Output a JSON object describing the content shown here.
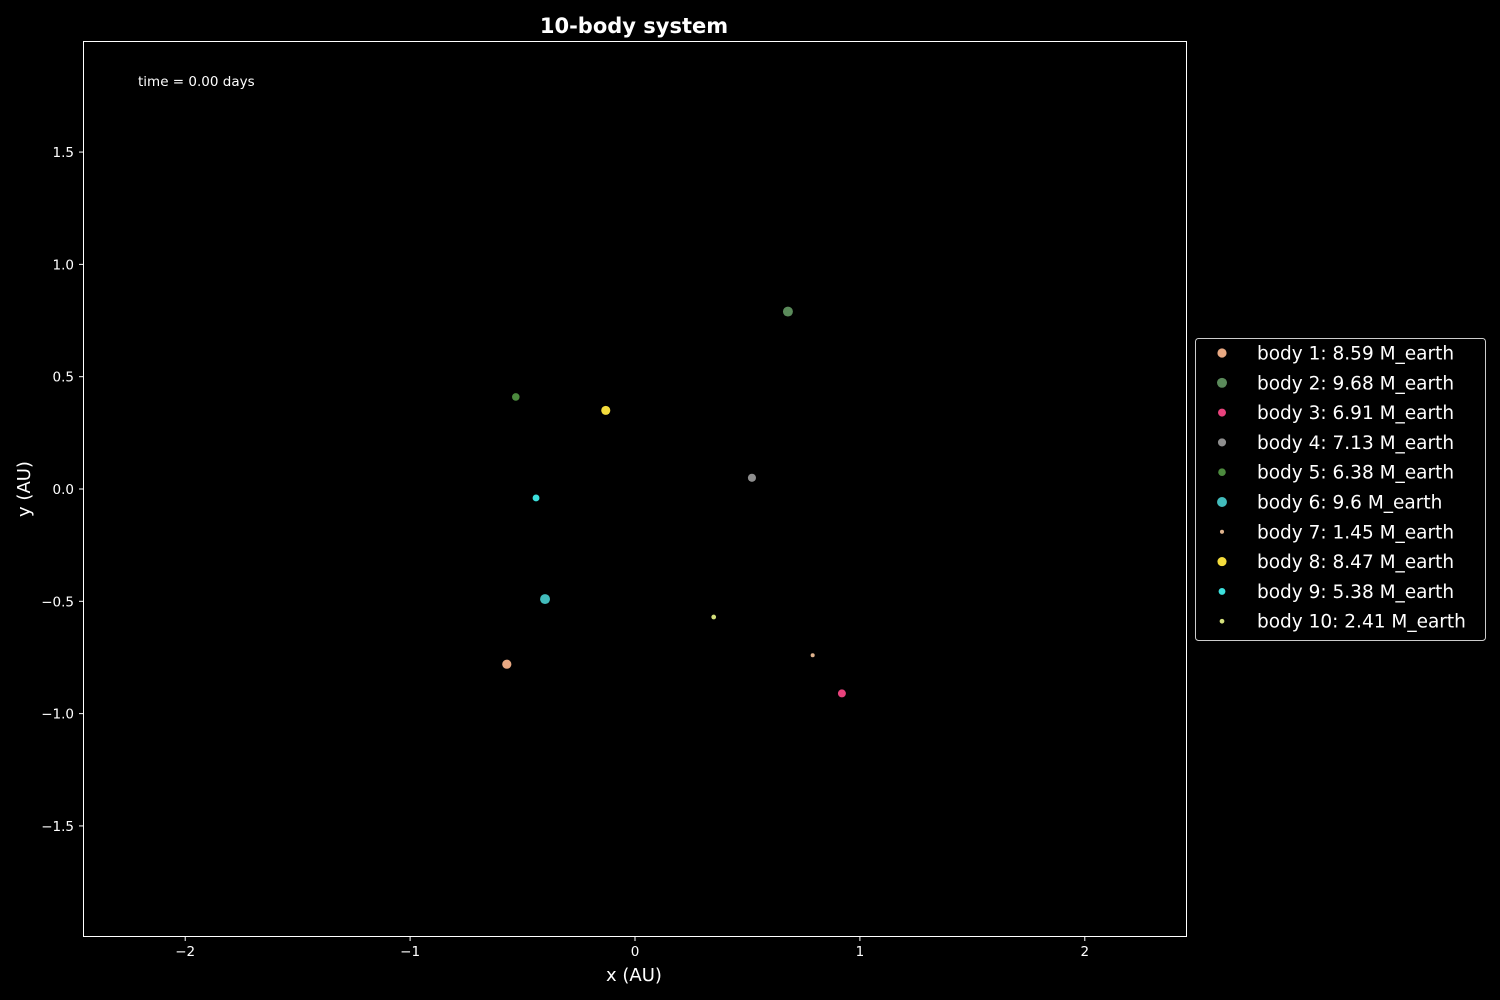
{
  "chart_data": {
    "type": "scatter",
    "title": "10-body system",
    "xlabel": "x (AU)",
    "ylabel": "y (AU)",
    "xlim": [
      -2.45,
      2.45
    ],
    "ylim": [
      -1.99,
      1.99
    ],
    "xticks": [
      -2,
      -1,
      0,
      1,
      2
    ],
    "xtick_labels": [
      "−2",
      "−1",
      "0",
      "1",
      "2"
    ],
    "yticks": [
      -1.5,
      -1.0,
      -0.5,
      0.0,
      0.5,
      1.0,
      1.5
    ],
    "ytick_labels": [
      "−1.5",
      "−1.0",
      "−0.5",
      "0.0",
      "0.5",
      "1.0",
      "1.5"
    ],
    "grid": false,
    "legend_position": "right",
    "annotation": "time = 0.00 days",
    "series": [
      {
        "name": "body 1: 8.59 M_earth",
        "mass": 8.59,
        "color": "#e8a882",
        "x": -0.57,
        "y": -0.78
      },
      {
        "name": "body 2: 9.68 M_earth",
        "mass": 9.68,
        "color": "#5a8a5a",
        "x": 0.68,
        "y": 0.79
      },
      {
        "name": "body 3: 6.91 M_earth",
        "mass": 6.91,
        "color": "#e8427c",
        "x": 0.92,
        "y": -0.91
      },
      {
        "name": "body 4: 7.13 M_earth",
        "mass": 7.13,
        "color": "#8e8e8e",
        "x": 0.52,
        "y": 0.05
      },
      {
        "name": "body 5: 6.38 M_earth",
        "mass": 6.38,
        "color": "#4c8a3e",
        "x": -0.53,
        "y": 0.41
      },
      {
        "name": "body 6: 9.6 M_earth",
        "mass": 9.6,
        "color": "#42bcbc",
        "x": -0.4,
        "y": -0.49
      },
      {
        "name": "body 7: 1.45 M_earth",
        "mass": 1.45,
        "color": "#e0b48e",
        "x": 0.79,
        "y": -0.74
      },
      {
        "name": "body 8: 8.47 M_earth",
        "mass": 8.47,
        "color": "#f4dc3c",
        "x": -0.13,
        "y": 0.35
      },
      {
        "name": "body 9: 5.38 M_earth",
        "mass": 5.38,
        "color": "#3ce0dc",
        "x": -0.44,
        "y": -0.04
      },
      {
        "name": "body 10: 2.41 M_earth",
        "mass": 2.41,
        "color": "#d4e07c",
        "x": 0.35,
        "y": -0.57
      }
    ]
  }
}
